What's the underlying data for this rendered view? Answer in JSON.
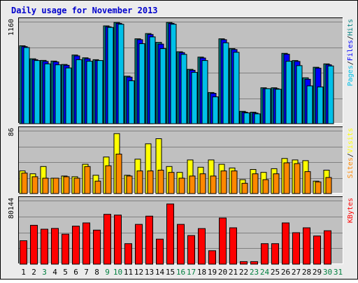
{
  "title": "Daily usage for November 2013",
  "colors": {
    "frame_bg": "#ebebeb",
    "panel_bg": "#c0c0c0",
    "title": "#0000cc",
    "grid": "#808080",
    "hits": "#008080",
    "files": "#0000ff",
    "pages": "#00c0e8",
    "visits": "#ffff00",
    "sites": "#ff8800",
    "kbytes": "#ff0000",
    "weekend": "#008040",
    "weekday": "#000000"
  },
  "chart_data": [
    {
      "type": "bar",
      "ylabel_parts": [
        "Pages",
        "/",
        "Files",
        "/",
        "Hits"
      ],
      "ymax_label": "1160",
      "ylim": [
        0,
        1160
      ],
      "categories": [
        "1",
        "2",
        "3",
        "4",
        "5",
        "6",
        "7",
        "8",
        "9",
        "10",
        "11",
        "12",
        "13",
        "14",
        "15",
        "16",
        "17",
        "18",
        "19",
        "20",
        "21",
        "22",
        "23",
        "24",
        "25",
        "26",
        "27",
        "28",
        "29",
        "30"
      ],
      "series": [
        {
          "name": "Hits",
          "values": [
            886,
            738,
            720,
            712,
            674,
            781,
            749,
            728,
            1112,
            1151,
            540,
            965,
            1025,
            925,
            1151,
            818,
            618,
            757,
            354,
            965,
            853,
            141,
            131,
            408,
            408,
            800,
            718,
            522,
            642,
            680
          ]
        },
        {
          "name": "Files",
          "values": [
            876,
            728,
            708,
            702,
            664,
            771,
            739,
            718,
            1102,
            1141,
            530,
            955,
            1015,
            905,
            1141,
            808,
            608,
            747,
            346,
            955,
            843,
            131,
            121,
            398,
            398,
            790,
            708,
            505,
            632,
            670
          ]
        },
        {
          "name": "Pages",
          "values": [
            866,
            718,
            680,
            670,
            634,
            728,
            710,
            718,
            1095,
            1131,
            488,
            910,
            987,
            853,
            1131,
            788,
            583,
            718,
            305,
            920,
            812,
            122,
            112,
            398,
            392,
            710,
            660,
            430,
            418,
            656
          ]
        }
      ]
    },
    {
      "type": "bar",
      "ylabel_parts": [
        "Sites",
        "/",
        "Visits"
      ],
      "ymax_label": "86",
      "ylim": [
        0,
        86
      ],
      "categories": [
        "1",
        "2",
        "3",
        "4",
        "5",
        "6",
        "7",
        "8",
        "9",
        "10",
        "11",
        "12",
        "13",
        "14",
        "15",
        "16",
        "17",
        "18",
        "19",
        "20",
        "21",
        "22",
        "23",
        "24",
        "25",
        "26",
        "27",
        "28",
        "29",
        "30"
      ],
      "series": [
        {
          "name": "Visits",
          "values": [
            31,
            27,
            37,
            21,
            24,
            23,
            40,
            25,
            50,
            82,
            25,
            47,
            68,
            75,
            37,
            29,
            46,
            36,
            46,
            40,
            35,
            19,
            33,
            29,
            34,
            48,
            46,
            45,
            17,
            32
          ]
        },
        {
          "name": "Sites",
          "values": [
            28,
            23,
            21,
            21,
            23,
            21,
            37,
            17,
            38,
            54,
            24,
            31,
            31,
            32,
            29,
            21,
            24,
            27,
            24,
            31,
            31,
            14,
            27,
            19,
            27,
            42,
            41,
            30,
            16,
            22
          ]
        }
      ]
    },
    {
      "type": "bar",
      "ylabel_parts": [
        "KBytes"
      ],
      "ymax_label": "80144",
      "ylim": [
        0,
        80144
      ],
      "categories": [
        "1",
        "2",
        "3",
        "4",
        "5",
        "6",
        "7",
        "8",
        "9",
        "10",
        "11",
        "12",
        "13",
        "14",
        "15",
        "16",
        "17",
        "18",
        "19",
        "20",
        "21",
        "22",
        "23",
        "24",
        "25",
        "26",
        "27",
        "28",
        "29",
        "30"
      ],
      "series": [
        {
          "name": "KBytes",
          "values": [
            29500,
            49000,
            44000,
            45000,
            37800,
            47900,
            52000,
            42900,
            62800,
            61800,
            25800,
            50100,
            60500,
            31500,
            75800,
            50100,
            36000,
            44800,
            16900,
            58100,
            45800,
            3200,
            3200,
            25800,
            25800,
            52000,
            39600,
            45800,
            35500,
            42100
          ]
        }
      ]
    }
  ],
  "x_labels": [
    {
      "label": "1",
      "weekend": false
    },
    {
      "label": "2",
      "weekend": false
    },
    {
      "label": "3",
      "weekend": true
    },
    {
      "label": "4",
      "weekend": false
    },
    {
      "label": "5",
      "weekend": false
    },
    {
      "label": "6",
      "weekend": false
    },
    {
      "label": "7",
      "weekend": false
    },
    {
      "label": "8",
      "weekend": false
    },
    {
      "label": "9",
      "weekend": true
    },
    {
      "label": "10",
      "weekend": true
    },
    {
      "label": "11",
      "weekend": false
    },
    {
      "label": "12",
      "weekend": false
    },
    {
      "label": "13",
      "weekend": false
    },
    {
      "label": "14",
      "weekend": false
    },
    {
      "label": "15",
      "weekend": false
    },
    {
      "label": "16",
      "weekend": true
    },
    {
      "label": "17",
      "weekend": true
    },
    {
      "label": "18",
      "weekend": false
    },
    {
      "label": "19",
      "weekend": false
    },
    {
      "label": "20",
      "weekend": false
    },
    {
      "label": "21",
      "weekend": false
    },
    {
      "label": "22",
      "weekend": false
    },
    {
      "label": "23",
      "weekend": true
    },
    {
      "label": "24",
      "weekend": true
    },
    {
      "label": "25",
      "weekend": false
    },
    {
      "label": "26",
      "weekend": false
    },
    {
      "label": "27",
      "weekend": false
    },
    {
      "label": "28",
      "weekend": false
    },
    {
      "label": "29",
      "weekend": false
    },
    {
      "label": "30",
      "weekend": true
    },
    {
      "label": "31",
      "weekend": true
    }
  ]
}
